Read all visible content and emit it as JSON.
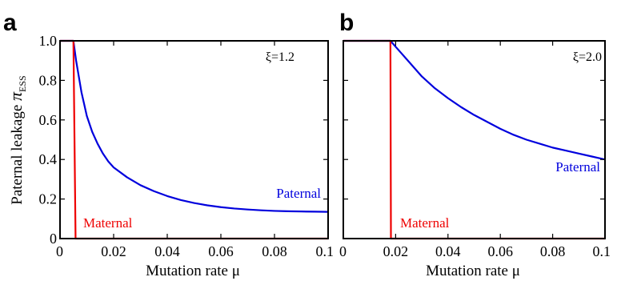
{
  "figure": {
    "panels": [
      "a",
      "b"
    ]
  },
  "chart_data": [
    {
      "type": "line",
      "panel_label": "a",
      "annotation": "ξ=1.2",
      "xlabel": "Mutation rate μ",
      "ylabel": "Paternal leakage π_ESS",
      "ylabel_main": "Paternal leakage ",
      "ylabel_symbol": "π",
      "ylabel_sub": "ESS",
      "xlim": [
        0,
        0.1
      ],
      "ylim": [
        0,
        1.0
      ],
      "xticks": [
        0,
        0.02,
        0.04,
        0.06,
        0.08,
        0.1
      ],
      "xtick_labels": [
        "0",
        "0.02",
        "0.04",
        "0.06",
        "0.08",
        "0.1"
      ],
      "yticks": [
        0,
        0.2,
        0.4,
        0.6,
        0.8,
        1.0
      ],
      "ytick_labels": [
        "0",
        "0.2",
        "0.4",
        "0.6",
        "0.8",
        "1.0"
      ],
      "series": [
        {
          "name": "Paternal",
          "color": "#0000dd",
          "x": [
            0,
            0.005,
            0.0055,
            0.006,
            0.007,
            0.008,
            0.009,
            0.01,
            0.012,
            0.014,
            0.016,
            0.018,
            0.02,
            0.025,
            0.03,
            0.035,
            0.04,
            0.045,
            0.05,
            0.055,
            0.06,
            0.065,
            0.07,
            0.075,
            0.08,
            0.085,
            0.09,
            0.095,
            0.1
          ],
          "y": [
            1.0,
            1.0,
            0.95,
            0.9,
            0.82,
            0.74,
            0.68,
            0.62,
            0.54,
            0.48,
            0.43,
            0.39,
            0.36,
            0.31,
            0.27,
            0.24,
            0.215,
            0.195,
            0.18,
            0.168,
            0.159,
            0.152,
            0.147,
            0.143,
            0.14,
            0.138,
            0.137,
            0.136,
            0.135
          ]
        },
        {
          "name": "Maternal",
          "color": "#ee0000",
          "x": [
            0,
            0.005,
            0.0058,
            0.1
          ],
          "y": [
            1.0,
            1.0,
            0.0,
            0.0
          ]
        }
      ]
    },
    {
      "type": "line",
      "panel_label": "b",
      "annotation": "ξ=2.0",
      "xlabel": "Mutation rate μ",
      "ylabel": "",
      "xlim": [
        0,
        0.1
      ],
      "ylim": [
        0,
        1.0
      ],
      "xticks": [
        0,
        0.02,
        0.04,
        0.06,
        0.08,
        0.1
      ],
      "xtick_labels": [
        "0",
        "0.02",
        "0.04",
        "0.06",
        "0.08",
        "0.1"
      ],
      "yticks": [
        0,
        0.2,
        0.4,
        0.6,
        0.8,
        1.0
      ],
      "ytick_labels": [],
      "series": [
        {
          "name": "Paternal",
          "color": "#0000dd",
          "x": [
            0,
            0.018,
            0.022,
            0.026,
            0.03,
            0.035,
            0.04,
            0.045,
            0.05,
            0.055,
            0.06,
            0.065,
            0.07,
            0.075,
            0.08,
            0.085,
            0.09,
            0.095,
            0.1
          ],
          "y": [
            1.0,
            1.0,
            0.94,
            0.88,
            0.82,
            0.76,
            0.71,
            0.665,
            0.625,
            0.59,
            0.555,
            0.525,
            0.5,
            0.48,
            0.46,
            0.445,
            0.43,
            0.415,
            0.4
          ]
        },
        {
          "name": "Maternal",
          "color": "#ee0000",
          "x": [
            0,
            0.018,
            0.0182,
            0.1
          ],
          "y": [
            1.0,
            1.0,
            0.0,
            0.0
          ]
        }
      ]
    }
  ]
}
